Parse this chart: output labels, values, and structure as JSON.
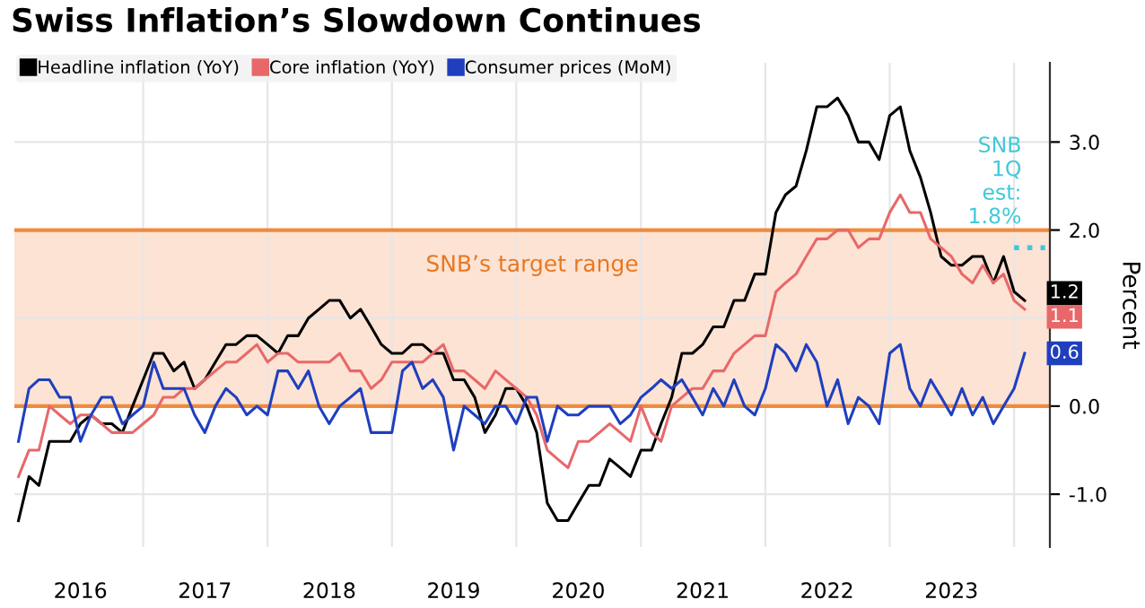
{
  "chart_data": {
    "type": "line",
    "title": "Swiss Inflation’s Slowdown Continues",
    "ylabel": "Percent",
    "x": [
      "2016-01",
      "2016-02",
      "2016-03",
      "2016-04",
      "2016-05",
      "2016-06",
      "2016-07",
      "2016-08",
      "2016-09",
      "2016-10",
      "2016-11",
      "2016-12",
      "2017-01",
      "2017-02",
      "2017-03",
      "2017-04",
      "2017-05",
      "2017-06",
      "2017-07",
      "2017-08",
      "2017-09",
      "2017-10",
      "2017-11",
      "2017-12",
      "2018-01",
      "2018-02",
      "2018-03",
      "2018-04",
      "2018-05",
      "2018-06",
      "2018-07",
      "2018-08",
      "2018-09",
      "2018-10",
      "2018-11",
      "2018-12",
      "2019-01",
      "2019-02",
      "2019-03",
      "2019-04",
      "2019-05",
      "2019-06",
      "2019-07",
      "2019-08",
      "2019-09",
      "2019-10",
      "2019-11",
      "2019-12",
      "2020-01",
      "2020-02",
      "2020-03",
      "2020-04",
      "2020-05",
      "2020-06",
      "2020-07",
      "2020-08",
      "2020-09",
      "2020-10",
      "2020-11",
      "2020-12",
      "2021-01",
      "2021-02",
      "2021-03",
      "2021-04",
      "2021-05",
      "2021-06",
      "2021-07",
      "2021-08",
      "2021-09",
      "2021-10",
      "2021-11",
      "2021-12",
      "2022-01",
      "2022-02",
      "2022-03",
      "2022-04",
      "2022-05",
      "2022-06",
      "2022-07",
      "2022-08",
      "2022-09",
      "2022-10",
      "2022-11",
      "2022-12",
      "2023-01",
      "2023-02",
      "2023-03",
      "2023-04",
      "2023-05",
      "2023-06",
      "2023-07",
      "2023-08",
      "2023-09",
      "2023-10",
      "2023-11",
      "2023-12",
      "2024-01",
      "2024-02"
    ],
    "series": [
      {
        "name": "Headline inflation (YoY)",
        "color": "#000000",
        "values": [
          -1.3,
          -0.8,
          -0.9,
          -0.4,
          -0.4,
          -0.4,
          -0.2,
          -0.1,
          -0.2,
          -0.2,
          -0.3,
          0.0,
          0.3,
          0.6,
          0.6,
          0.4,
          0.5,
          0.2,
          0.3,
          0.5,
          0.7,
          0.7,
          0.8,
          0.8,
          0.7,
          0.6,
          0.8,
          0.8,
          1.0,
          1.1,
          1.2,
          1.2,
          1.0,
          1.1,
          0.9,
          0.7,
          0.6,
          0.6,
          0.7,
          0.7,
          0.6,
          0.6,
          0.3,
          0.3,
          0.1,
          -0.3,
          -0.1,
          0.2,
          0.2,
          0.0,
          -0.3,
          -1.1,
          -1.3,
          -1.3,
          -1.1,
          -0.9,
          -0.9,
          -0.6,
          -0.7,
          -0.8,
          -0.5,
          -0.5,
          -0.2,
          0.1,
          0.6,
          0.6,
          0.7,
          0.9,
          0.9,
          1.2,
          1.2,
          1.5,
          1.5,
          2.2,
          2.4,
          2.5,
          2.9,
          3.4,
          3.4,
          3.5,
          3.3,
          3.0,
          3.0,
          2.8,
          3.3,
          3.4,
          2.9,
          2.6,
          2.2,
          1.7,
          1.6,
          1.6,
          1.7,
          1.7,
          1.4,
          1.7,
          1.3,
          1.2
        ],
        "value_labels": [
          null,
          null,
          null,
          null,
          null,
          null,
          null,
          null,
          null,
          null,
          null,
          null,
          null,
          null,
          null,
          null,
          null,
          null,
          null,
          null,
          null,
          null,
          null,
          null,
          null,
          null,
          null,
          null,
          null,
          null,
          null,
          null,
          null,
          null,
          null,
          null,
          null,
          null,
          null,
          null,
          null,
          null,
          null,
          null,
          null,
          null,
          null,
          null,
          null,
          null,
          null,
          null,
          null,
          null,
          null,
          null,
          null,
          null,
          null,
          null,
          null,
          null,
          null,
          null,
          null,
          null,
          null,
          null,
          null,
          null,
          null,
          null,
          null,
          null,
          null,
          null,
          null,
          null,
          null,
          null,
          null,
          null,
          null,
          null,
          null,
          null,
          null,
          null,
          null,
          null,
          null,
          null,
          null,
          null,
          null,
          null,
          null,
          "1.2"
        ]
      },
      {
        "name": "Core inflation (YoY)",
        "color": "#e8686a",
        "values": [
          -0.8,
          -0.5,
          -0.5,
          0.0,
          -0.1,
          -0.2,
          -0.1,
          -0.1,
          -0.2,
          -0.3,
          -0.3,
          -0.3,
          -0.2,
          -0.1,
          0.1,
          0.1,
          0.2,
          0.2,
          0.3,
          0.4,
          0.5,
          0.5,
          0.6,
          0.7,
          0.5,
          0.6,
          0.6,
          0.5,
          0.5,
          0.5,
          0.5,
          0.6,
          0.4,
          0.4,
          0.2,
          0.3,
          0.5,
          0.5,
          0.5,
          0.5,
          0.6,
          0.7,
          0.4,
          0.4,
          0.3,
          0.2,
          0.4,
          0.3,
          0.2,
          0.1,
          -0.1,
          -0.5,
          -0.6,
          -0.7,
          -0.4,
          -0.4,
          -0.3,
          -0.2,
          -0.3,
          -0.4,
          0.0,
          -0.3,
          -0.4,
          0.0,
          0.1,
          0.2,
          0.2,
          0.4,
          0.4,
          0.6,
          0.7,
          0.8,
          0.8,
          1.3,
          1.4,
          1.5,
          1.7,
          1.9,
          1.9,
          2.0,
          2.0,
          1.8,
          1.9,
          1.9,
          2.2,
          2.4,
          2.2,
          2.2,
          1.9,
          1.8,
          1.7,
          1.5,
          1.4,
          1.6,
          1.4,
          1.5,
          1.2,
          1.1
        ],
        "value_labels": [
          null,
          null,
          null,
          null,
          null,
          null,
          null,
          null,
          null,
          null,
          null,
          null,
          null,
          null,
          null,
          null,
          null,
          null,
          null,
          null,
          null,
          null,
          null,
          null,
          null,
          null,
          null,
          null,
          null,
          null,
          null,
          null,
          null,
          null,
          null,
          null,
          null,
          null,
          null,
          null,
          null,
          null,
          null,
          null,
          null,
          null,
          null,
          null,
          null,
          null,
          null,
          null,
          null,
          null,
          null,
          null,
          null,
          null,
          null,
          null,
          null,
          null,
          null,
          null,
          null,
          null,
          null,
          null,
          null,
          null,
          null,
          null,
          null,
          null,
          null,
          null,
          null,
          null,
          null,
          null,
          null,
          null,
          null,
          null,
          null,
          null,
          null,
          null,
          null,
          null,
          null,
          null,
          null,
          null,
          null,
          null,
          null,
          "1.1"
        ]
      },
      {
        "name": "Consumer prices (MoM)",
        "color": "#1f3fbf",
        "values": [
          -0.4,
          0.2,
          0.3,
          0.3,
          0.1,
          0.1,
          -0.4,
          -0.1,
          0.1,
          0.1,
          -0.2,
          -0.1,
          0.0,
          0.5,
          0.2,
          0.2,
          0.2,
          -0.1,
          -0.3,
          0.0,
          0.2,
          0.1,
          -0.1,
          0.0,
          -0.1,
          0.4,
          0.4,
          0.2,
          0.4,
          0.0,
          -0.2,
          0.0,
          0.1,
          0.2,
          -0.3,
          -0.3,
          -0.3,
          0.4,
          0.5,
          0.2,
          0.3,
          0.1,
          -0.5,
          0.0,
          -0.1,
          -0.2,
          0.0,
          0.0,
          -0.2,
          0.1,
          0.1,
          -0.4,
          0.0,
          -0.1,
          -0.1,
          0.0,
          0.0,
          0.0,
          -0.2,
          -0.1,
          0.1,
          0.2,
          0.3,
          0.2,
          0.3,
          0.1,
          -0.1,
          0.2,
          0.0,
          0.3,
          0.0,
          -0.1,
          0.2,
          0.7,
          0.6,
          0.4,
          0.7,
          0.5,
          0.0,
          0.3,
          -0.2,
          0.1,
          0.0,
          -0.2,
          0.6,
          0.7,
          0.2,
          0.0,
          0.3,
          0.1,
          -0.1,
          0.2,
          -0.1,
          0.1,
          -0.2,
          0.0,
          0.2,
          0.6
        ],
        "value_labels": [
          null,
          null,
          null,
          null,
          null,
          null,
          null,
          null,
          null,
          null,
          null,
          null,
          null,
          null,
          null,
          null,
          null,
          null,
          null,
          null,
          null,
          null,
          null,
          null,
          null,
          null,
          null,
          null,
          null,
          null,
          null,
          null,
          null,
          null,
          null,
          null,
          null,
          null,
          null,
          null,
          null,
          null,
          null,
          null,
          null,
          null,
          null,
          null,
          null,
          null,
          null,
          null,
          null,
          null,
          null,
          null,
          null,
          null,
          null,
          null,
          null,
          null,
          null,
          null,
          null,
          null,
          null,
          null,
          null,
          null,
          null,
          null,
          null,
          null,
          null,
          null,
          null,
          null,
          null,
          null,
          null,
          null,
          null,
          null,
          null,
          null,
          null,
          null,
          null,
          null,
          null,
          null,
          null,
          null,
          null,
          null,
          null,
          "0.6"
        ]
      },
      {
        "color": "#3fc8d8",
        "x": [
          "2024-01",
          "2024-04"
        ],
        "values": [
          1.8,
          1.8
        ],
        "line_style": "dotted"
      }
    ],
    "annotations": [
      {
        "text": "SNB\n1Q\nest:\n1.8%",
        "x": "2024-01",
        "y": 1.8
      }
    ],
    "bands": [
      {
        "axis": "y",
        "from": 0,
        "to": 2,
        "label": "SNB’s target range",
        "color": "#fde3d3"
      }
    ],
    "xlim": [
      "2015-12-20",
      "2024-04-15"
    ],
    "xticks": [
      {
        "value": "2016-07-01",
        "label": "2016"
      },
      {
        "value": "2017-07-01",
        "label": "2017"
      },
      {
        "value": "2018-07-01",
        "label": "2018"
      },
      {
        "value": "2019-07-01",
        "label": "2019"
      },
      {
        "value": "2020-07-01",
        "label": "2020"
      },
      {
        "value": "2021-07-01",
        "label": "2021"
      },
      {
        "value": "2022-07-01",
        "label": "2022"
      },
      {
        "value": "2023-07-01",
        "label": "2023"
      },
      {
        "value": "2017-01-01",
        "label": null
      },
      {
        "value": "2018-01-01",
        "label": null
      },
      {
        "value": "2019-01-01",
        "label": null
      },
      {
        "value": "2020-01-01",
        "label": null
      },
      {
        "value": "2021-01-01",
        "label": null
      },
      {
        "value": "2022-01-01",
        "label": null
      },
      {
        "value": "2023-01-01",
        "label": null
      },
      {
        "value": "2024-01-01",
        "label": null
      }
    ],
    "ylim": [
      -1.6,
      3.9
    ],
    "yticks": [
      {
        "value": -1,
        "label": "-1.0"
      },
      {
        "value": 0,
        "label": "0.0"
      },
      {
        "value": 1,
        "label": null
      },
      {
        "value": 2,
        "label": "2.0"
      },
      {
        "value": 3,
        "label": "3.0"
      }
    ],
    "grid": true,
    "legend": "top left",
    "marker": "none",
    "line_style": "solid"
  }
}
